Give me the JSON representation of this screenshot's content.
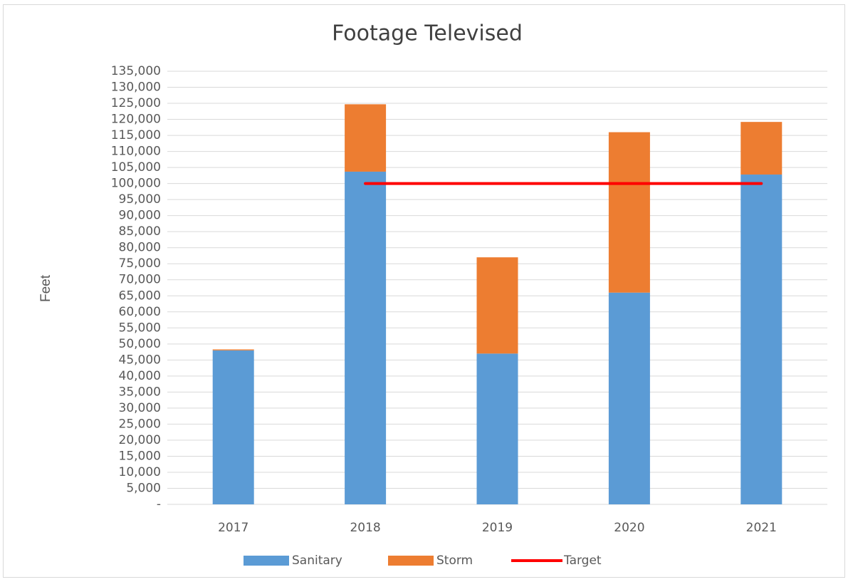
{
  "chart_data": {
    "type": "stacked_bar_line",
    "title": "Footage Televised",
    "y_label": "Feet",
    "categories": [
      "2017",
      "2018",
      "2019",
      "2020",
      "2021"
    ],
    "series": [
      {
        "name": "Sanitary",
        "type": "bar",
        "color": "#5b9bd5",
        "values": [
          48000,
          103700,
          47000,
          66000,
          102800
        ]
      },
      {
        "name": "Storm",
        "type": "bar",
        "color": "#ed7d31",
        "values": [
          300,
          21000,
          30000,
          50000,
          16400
        ]
      },
      {
        "name": "Target",
        "type": "line",
        "color": "#ff0000",
        "values": [
          null,
          100000,
          100000,
          100000,
          100000
        ]
      }
    ],
    "ylim": [
      0,
      135000
    ],
    "yticks": [
      {
        "value": 0,
        "label": "-"
      },
      {
        "value": 5000,
        "label": "5,000"
      },
      {
        "value": 10000,
        "label": "10,000"
      },
      {
        "value": 15000,
        "label": "15,000"
      },
      {
        "value": 20000,
        "label": "20,000"
      },
      {
        "value": 25000,
        "label": "25,000"
      },
      {
        "value": 30000,
        "label": "30,000"
      },
      {
        "value": 35000,
        "label": "35,000"
      },
      {
        "value": 40000,
        "label": "40,000"
      },
      {
        "value": 45000,
        "label": "45,000"
      },
      {
        "value": 50000,
        "label": "50,000"
      },
      {
        "value": 55000,
        "label": "55,000"
      },
      {
        "value": 60000,
        "label": "60,000"
      },
      {
        "value": 65000,
        "label": "65,000"
      },
      {
        "value": 70000,
        "label": "70,000"
      },
      {
        "value": 75000,
        "label": "75,000"
      },
      {
        "value": 80000,
        "label": "80,000"
      },
      {
        "value": 85000,
        "label": "85,000"
      },
      {
        "value": 90000,
        "label": "90,000"
      },
      {
        "value": 95000,
        "label": "95,000"
      },
      {
        "value": 100000,
        "label": "100,000"
      },
      {
        "value": 105000,
        "label": "105,000"
      },
      {
        "value": 110000,
        "label": "110,000"
      },
      {
        "value": 115000,
        "label": "115,000"
      },
      {
        "value": 120000,
        "label": "120,000"
      },
      {
        "value": 125000,
        "label": "125,000"
      },
      {
        "value": 130000,
        "label": "130,000"
      },
      {
        "value": 135000,
        "label": "135,000"
      }
    ],
    "grid": true,
    "legend": "bottom"
  }
}
